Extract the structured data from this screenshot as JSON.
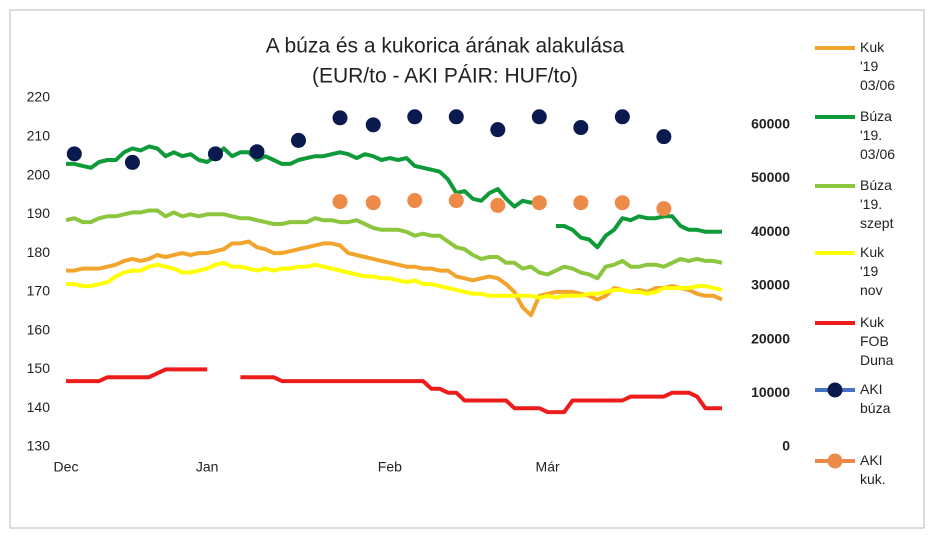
{
  "chart_data": {
    "type": "line",
    "title": "A búza és a kukorica árának alakulása",
    "subtitle": "(EUR/to - AKI PÁIR: HUF/to)",
    "categories": [
      "Dec",
      null,
      null,
      null,
      null,
      null,
      null,
      null,
      null,
      null,
      null,
      null,
      null,
      null,
      null,
      null,
      null,
      "Jan",
      null,
      null,
      null,
      null,
      null,
      null,
      null,
      null,
      null,
      null,
      null,
      null,
      null,
      null,
      null,
      null,
      null,
      null,
      null,
      null,
      null,
      "Feb",
      null,
      null,
      null,
      null,
      null,
      null,
      null,
      null,
      null,
      null,
      null,
      null,
      null,
      null,
      null,
      null,
      null,
      null,
      "Már",
      null,
      null,
      null,
      null,
      null,
      null,
      null,
      null,
      null,
      null,
      null,
      null,
      null,
      null,
      null,
      null,
      null,
      null,
      null,
      null,
      null
    ],
    "ylim": [
      130,
      220
    ],
    "yticks": [
      130,
      140,
      150,
      160,
      170,
      180,
      190,
      200,
      210,
      220
    ],
    "y2lim": [
      0,
      65000
    ],
    "y2ticks": [
      0,
      10000,
      20000,
      30000,
      40000,
      50000,
      60000
    ],
    "grid": false,
    "legend": "right",
    "series": [
      {
        "name": "Kuk '19 03/06",
        "color": "#f2a42c",
        "style": "line",
        "values": [
          175.5,
          175.5,
          176,
          176,
          176,
          176.5,
          177,
          178,
          178.5,
          178,
          178.5,
          179.5,
          179,
          179.5,
          180,
          179.5,
          180,
          180,
          180.5,
          181,
          182.5,
          182.5,
          183,
          181.5,
          181,
          180,
          180,
          180.5,
          181,
          181.5,
          182,
          182.5,
          182.5,
          182,
          180,
          179.5,
          179,
          178.5,
          178,
          177.5,
          177,
          176.5,
          176.5,
          176,
          176,
          175.5,
          175.5,
          174,
          173.5,
          173,
          173.5,
          174,
          173.5,
          172,
          170,
          166,
          164,
          169,
          169.5,
          170,
          170,
          170,
          169.5,
          169,
          168,
          169,
          171,
          170.5,
          170,
          170.5,
          170,
          171,
          171,
          171.5,
          171,
          170.5,
          169.5,
          169,
          169,
          168
        ]
      },
      {
        "name": "Búza '19. 03/06",
        "color": "#0f9a3a",
        "style": "line",
        "values": [
          203,
          203,
          202.5,
          202,
          203.5,
          204,
          204,
          206,
          207,
          206.5,
          207.5,
          207,
          205,
          206,
          205,
          205.5,
          204,
          203.5,
          205,
          207,
          205,
          206,
          206,
          204,
          205,
          204,
          203,
          203,
          204,
          204.5,
          205,
          205,
          205.5,
          206,
          205.5,
          204.5,
          205.5,
          205,
          204,
          204.5,
          204,
          204.5,
          202.5,
          202,
          201.5,
          201,
          199,
          195.5,
          196,
          194,
          193.5,
          195.5,
          196.5,
          194,
          192,
          193.5,
          193,
          193.5,
          null,
          187,
          187,
          186,
          184,
          183.5,
          181.5,
          184.5,
          186,
          189,
          188.5,
          189.5,
          189,
          189,
          189.5,
          189.5,
          187,
          186,
          186,
          185.5,
          185.5,
          185.5
        ]
      },
      {
        "name": "Búza '19. szept",
        "color": "#8cc63f",
        "style": "line",
        "values": [
          188.5,
          189,
          188,
          188,
          189,
          189.5,
          189.5,
          190,
          190.5,
          190.5,
          191,
          191,
          189.5,
          190.5,
          189.5,
          190,
          189.5,
          190,
          190,
          190,
          189.5,
          189,
          189,
          188.5,
          188,
          187.5,
          187.5,
          188,
          188,
          188,
          189,
          188.5,
          188.5,
          188,
          188,
          188.5,
          187.5,
          186.5,
          186,
          186,
          186,
          185.5,
          184.5,
          185,
          184.5,
          184.5,
          183,
          181.5,
          181,
          179.5,
          178.5,
          179,
          179,
          177.5,
          177.5,
          176,
          176.5,
          175,
          174.5,
          175.5,
          176.5,
          176,
          175,
          174.5,
          173.5,
          176.5,
          177,
          178,
          176.5,
          176.5,
          177,
          177,
          176.5,
          177.5,
          178.5,
          178,
          178.5,
          178,
          178,
          177.5
        ]
      },
      {
        "name": "Kuk '19 nov",
        "color": "#ffff00",
        "style": "line",
        "values": [
          172,
          172,
          171.5,
          171.5,
          172,
          172.5,
          174,
          175,
          175.5,
          175.5,
          176.5,
          177,
          176.5,
          176,
          175,
          175,
          175.5,
          176,
          177,
          177.5,
          176.5,
          176.5,
          176,
          175.5,
          176,
          175.5,
          176,
          176,
          176.5,
          176.5,
          177,
          176.5,
          176,
          175.5,
          175,
          174.5,
          174,
          174,
          173.5,
          173.5,
          173,
          172.5,
          173,
          172,
          172,
          171.5,
          171,
          170.5,
          170,
          169.5,
          169.5,
          169,
          169,
          169,
          169,
          169,
          169,
          168.5,
          169,
          168.5,
          169,
          169,
          169,
          169.5,
          169.5,
          170,
          170.5,
          170.5,
          170,
          170,
          169.5,
          170,
          171,
          171,
          171,
          171,
          171.5,
          171.5,
          171,
          170.5
        ]
      },
      {
        "name": "Kuk FOB Duna",
        "color": "#ee1b1b",
        "style": "line",
        "values": [
          147,
          147,
          147,
          147,
          147,
          148,
          148,
          148,
          148,
          148,
          148,
          149,
          150,
          150,
          150,
          150,
          150,
          150,
          null,
          null,
          null,
          148,
          148,
          148,
          148,
          148,
          147,
          147,
          147,
          147,
          147,
          147,
          147,
          147,
          147,
          147,
          147,
          147,
          147,
          147,
          147,
          147,
          147,
          147,
          145,
          145,
          144,
          144,
          142,
          142,
          142,
          142,
          142,
          142,
          140,
          140,
          140,
          140,
          139,
          139,
          139,
          142,
          142,
          142,
          142,
          142,
          142,
          142,
          143,
          143,
          143,
          143,
          143,
          144,
          144,
          144,
          143,
          140,
          140,
          140
        ]
      },
      {
        "name": "AKI búza",
        "color": "#0b1a4e",
        "line_color": "#4472c4",
        "style": "markers",
        "axis": "y2",
        "values": [
          null,
          54600,
          null,
          null,
          null,
          null,
          null,
          null,
          53000,
          null,
          null,
          null,
          null,
          null,
          null,
          null,
          null,
          null,
          54600,
          null,
          null,
          null,
          null,
          55000,
          null,
          null,
          null,
          null,
          57100,
          null,
          null,
          null,
          null,
          61300,
          null,
          null,
          null,
          60000,
          null,
          null,
          null,
          null,
          61500,
          null,
          null,
          null,
          null,
          61500,
          null,
          null,
          null,
          null,
          59100,
          null,
          null,
          null,
          null,
          61500,
          null,
          null,
          null,
          null,
          59500,
          null,
          null,
          null,
          null,
          61500,
          null,
          null,
          null,
          null,
          57800,
          null,
          null,
          null,
          null,
          null,
          null,
          null
        ]
      },
      {
        "name": "AKI kuk.",
        "color": "#ee8a48",
        "line_color": "#ee8a48",
        "style": "markers",
        "axis": "y2",
        "values": [
          null,
          null,
          null,
          null,
          null,
          null,
          null,
          null,
          null,
          null,
          null,
          null,
          null,
          null,
          null,
          null,
          null,
          null,
          null,
          null,
          null,
          null,
          null,
          null,
          null,
          null,
          null,
          null,
          null,
          null,
          null,
          null,
          null,
          45700,
          null,
          null,
          null,
          45500,
          null,
          null,
          null,
          null,
          45900,
          null,
          null,
          null,
          null,
          45900,
          null,
          null,
          null,
          null,
          45000,
          null,
          null,
          null,
          null,
          45500,
          null,
          null,
          null,
          null,
          45500,
          null,
          null,
          null,
          null,
          45500,
          null,
          null,
          null,
          null,
          44400,
          null,
          null,
          null,
          null,
          null,
          null,
          null
        ]
      }
    ]
  }
}
